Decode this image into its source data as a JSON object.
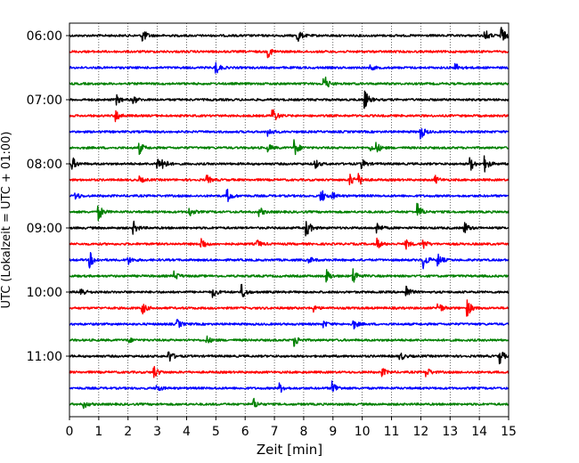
{
  "chart_data": {
    "type": "line",
    "title": "",
    "xlabel": "Zeit  [min]",
    "ylabel": "UTC (Lokalzeit = UTC + 01:00)",
    "xlim": [
      0,
      15
    ],
    "x_ticks": [
      0,
      1,
      2,
      3,
      4,
      5,
      6,
      7,
      8,
      9,
      10,
      11,
      12,
      13,
      14,
      15
    ],
    "x_grid": true,
    "y_tick_labels": [
      "06:00",
      "07:00",
      "08:00",
      "09:00",
      "10:00",
      "11:00"
    ],
    "trace_interval_minutes": 15,
    "trace_colors": [
      "#000000",
      "#ff0000",
      "#0000ff",
      "#008000"
    ],
    "traces": [
      {
        "start": "06:00",
        "events": [
          [
            2.5,
            1.0
          ],
          [
            7.8,
            0.9
          ],
          [
            14.2,
            0.8
          ],
          [
            14.75,
            1.2
          ]
        ]
      },
      {
        "start": "06:15",
        "events": [
          [
            6.8,
            0.7
          ]
        ]
      },
      {
        "start": "06:30",
        "events": [
          [
            5.0,
            0.9
          ],
          [
            10.3,
            0.3
          ],
          [
            13.2,
            0.6
          ]
        ]
      },
      {
        "start": "06:45",
        "events": [
          [
            8.7,
            1.3
          ]
        ]
      },
      {
        "start": "07:00",
        "events": [
          [
            1.6,
            0.7
          ],
          [
            2.2,
            0.5
          ],
          [
            10.1,
            1.2
          ]
        ]
      },
      {
        "start": "07:15",
        "events": [
          [
            1.6,
            0.8
          ],
          [
            6.95,
            1.1
          ]
        ]
      },
      {
        "start": "07:30",
        "events": [
          [
            6.8,
            0.6
          ],
          [
            12.0,
            1.0
          ]
        ]
      },
      {
        "start": "07:45",
        "events": [
          [
            2.4,
            0.8
          ],
          [
            6.8,
            0.5
          ],
          [
            7.7,
            1.1
          ],
          [
            10.3,
            0.4
          ],
          [
            10.5,
            0.6
          ]
        ]
      },
      {
        "start": "08:00",
        "events": [
          [
            0.1,
            0.9
          ],
          [
            3.0,
            0.9
          ],
          [
            3.2,
            0.7
          ],
          [
            8.4,
            0.6
          ],
          [
            10.0,
            0.6
          ],
          [
            13.7,
            0.9
          ],
          [
            14.2,
            1.0
          ]
        ]
      },
      {
        "start": "08:15",
        "events": [
          [
            2.4,
            0.4
          ],
          [
            4.7,
            0.6
          ],
          [
            9.6,
            0.9
          ],
          [
            9.9,
            0.7
          ],
          [
            12.5,
            0.5
          ]
        ]
      },
      {
        "start": "08:30",
        "events": [
          [
            0.2,
            0.6
          ],
          [
            5.4,
            0.9
          ],
          [
            8.6,
            1.0
          ],
          [
            9.0,
            0.4
          ]
        ]
      },
      {
        "start": "08:45",
        "events": [
          [
            1.0,
            1.1
          ],
          [
            4.1,
            0.6
          ],
          [
            6.5,
            0.6
          ],
          [
            11.9,
            1.1
          ]
        ]
      },
      {
        "start": "09:00",
        "events": [
          [
            2.2,
            0.8
          ],
          [
            8.1,
            1.3
          ],
          [
            10.5,
            0.8
          ],
          [
            13.5,
            0.8
          ]
        ]
      },
      {
        "start": "09:15",
        "events": [
          [
            4.5,
            1.0
          ],
          [
            6.4,
            0.6
          ],
          [
            10.5,
            0.8
          ],
          [
            11.5,
            0.6
          ],
          [
            12.1,
            0.6
          ]
        ]
      },
      {
        "start": "09:30",
        "events": [
          [
            0.7,
            1.1
          ],
          [
            2.0,
            0.6
          ],
          [
            8.2,
            0.4
          ],
          [
            12.1,
            1.1
          ],
          [
            12.6,
            0.8
          ]
        ]
      },
      {
        "start": "09:45",
        "events": [
          [
            3.6,
            0.6
          ],
          [
            8.8,
            0.8
          ],
          [
            9.7,
            1.1
          ]
        ]
      },
      {
        "start": "10:00",
        "events": [
          [
            0.4,
            0.7
          ],
          [
            4.9,
            0.7
          ],
          [
            5.9,
            1.0
          ],
          [
            11.5,
            1.0
          ]
        ]
      },
      {
        "start": "10:15",
        "events": [
          [
            2.5,
            0.8
          ],
          [
            8.3,
            0.6
          ],
          [
            12.6,
            0.9
          ],
          [
            13.6,
            1.1
          ]
        ]
      },
      {
        "start": "10:30",
        "events": [
          [
            3.7,
            0.6
          ],
          [
            8.7,
            0.4
          ],
          [
            9.7,
            0.7
          ]
        ]
      },
      {
        "start": "10:45",
        "events": [
          [
            2.0,
            0.4
          ],
          [
            4.7,
            0.5
          ],
          [
            7.7,
            0.8
          ]
        ]
      },
      {
        "start": "11:00",
        "events": [
          [
            3.4,
            0.9
          ],
          [
            11.3,
            0.6
          ],
          [
            14.7,
            1.1
          ]
        ]
      },
      {
        "start": "11:15",
        "events": [
          [
            2.9,
            0.8
          ],
          [
            10.7,
            0.5
          ],
          [
            12.2,
            0.7
          ]
        ]
      },
      {
        "start": "11:30",
        "events": [
          [
            3.0,
            0.5
          ],
          [
            7.2,
            0.6
          ],
          [
            9.0,
            1.0
          ]
        ]
      },
      {
        "start": "11:45",
        "events": [
          [
            0.5,
            0.5
          ],
          [
            6.3,
            0.7
          ]
        ]
      }
    ]
  }
}
